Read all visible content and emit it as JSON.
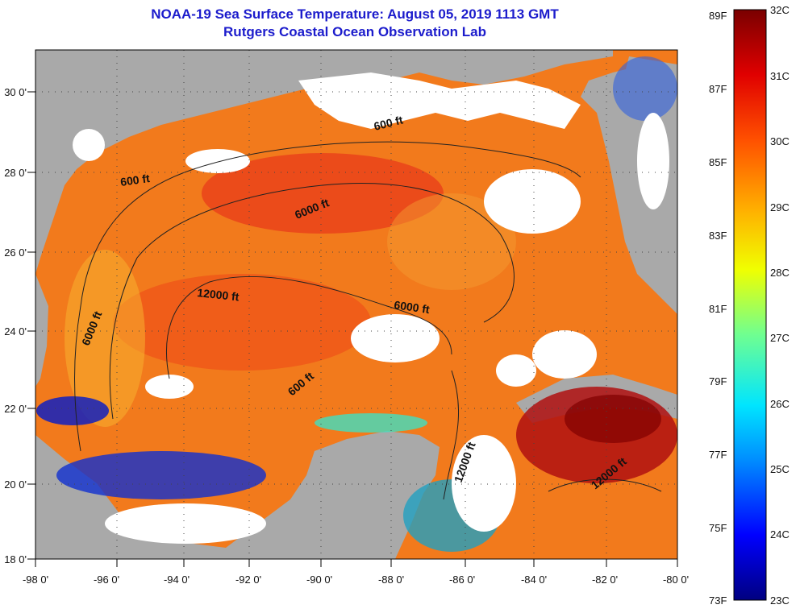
{
  "header": {
    "title": "NOAA-19 Sea Surface Temperature:  August 05, 2019 1113 GMT",
    "subtitle": "Rutgers Coastal Ocean Observation Lab"
  },
  "map": {
    "lon_labels": [
      "-98 0'",
      "-96 0'",
      "-94 0'",
      "-92 0'",
      "-90 0'",
      "-88 0'",
      "-86 0'",
      "-84 0'",
      "-82 0'",
      "-80 0'"
    ],
    "lat_labels": [
      "18 0'",
      "20 0'",
      "22 0'",
      "24 0'",
      "26 0'",
      "28 0'",
      "30 0'"
    ],
    "contour_labels": [
      "600 ft",
      "600 ft",
      "6000 ft",
      "12000 ft",
      "6000 ft",
      "6000 ft",
      "600 ft",
      "12000 ft",
      "12000 ft"
    ]
  },
  "colorbar": {
    "f_labels": [
      "89F",
      "87F",
      "85F",
      "83F",
      "81F",
      "79F",
      "77F",
      "75F",
      "73F"
    ],
    "c_labels": [
      "32C",
      "31C",
      "30C",
      "29C",
      "28C",
      "27C",
      "26C",
      "25C",
      "24C",
      "23C"
    ]
  },
  "colors": {
    "land": "#a9a9a9",
    "cloud": "#ffffff",
    "title": "#1c1ccc"
  }
}
